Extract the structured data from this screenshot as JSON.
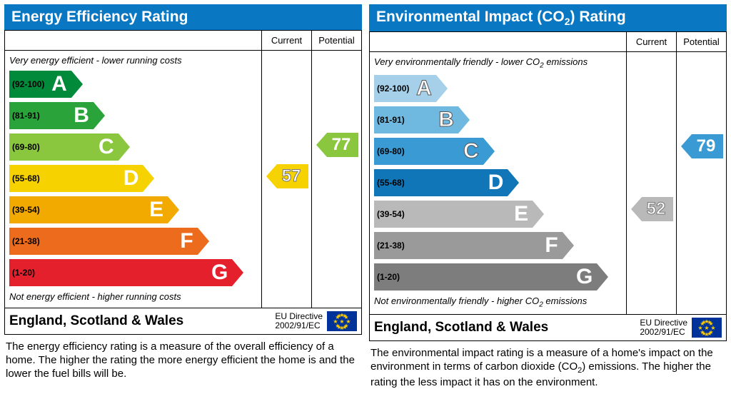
{
  "shared": {
    "col_current": "Current",
    "col_potential": "Potential",
    "region": "England, Scotland & Wales",
    "directive_line1": "EU Directive",
    "directive_line2": "2002/91/EC",
    "title_bg": "#0a77c2",
    "bands": [
      {
        "letter": "A",
        "range": "(92-100)",
        "width_pct": 25
      },
      {
        "letter": "B",
        "range": "(81-91)",
        "width_pct": 34
      },
      {
        "letter": "C",
        "range": "(69-80)",
        "width_pct": 44
      },
      {
        "letter": "D",
        "range": "(55-68)",
        "width_pct": 54
      },
      {
        "letter": "E",
        "range": "(39-54)",
        "width_pct": 64
      },
      {
        "letter": "F",
        "range": "(21-38)",
        "width_pct": 76
      },
      {
        "letter": "G",
        "range": "(1-20)",
        "width_pct": 90
      }
    ]
  },
  "left": {
    "title": "Energy Efficiency Rating",
    "caption_top": "Very energy efficient - lower running costs",
    "caption_bottom": "Not energy efficient - higher running costs",
    "colors": [
      "#008a3a",
      "#2aa43a",
      "#8bc63f",
      "#f6d200",
      "#f2a900",
      "#ed6b1c",
      "#e4202c"
    ],
    "current": {
      "value": 57,
      "band_index": 3,
      "color": "#f6d200",
      "outline": true
    },
    "potential": {
      "value": 77,
      "band_index": 2,
      "color": "#8bc63f",
      "outline": false
    },
    "description": "The energy efficiency rating is a measure of the overall efficiency of a home. The higher the rating the more energy efficient the home is and the lower the fuel bills will be."
  },
  "right": {
    "title_html": "Environmental Impact (CO<sub>2</sub>) Rating",
    "caption_top_html": "Very environmentally friendly - lower CO<sub>2</sub> emissions",
    "caption_bottom_html": "Not environmentally friendly - higher CO<sub>2</sub> emissions",
    "colors": [
      "#a6d0ea",
      "#6fb9e0",
      "#3a9bd4",
      "#1176b8",
      "#b9b9b9",
      "#9a9a9a",
      "#7d7d7d"
    ],
    "current": {
      "value": 52,
      "band_index": 4,
      "color": "#b9b9b9",
      "outline": true
    },
    "potential": {
      "value": 79,
      "band_index": 2,
      "color": "#3a9bd4",
      "outline": false
    },
    "description_html": "The environmental impact rating is a measure of a home's impact on the environment in terms of carbon dioxide (CO<sub>2</sub>) emissions. The higher the rating the less impact it has on the environment."
  }
}
